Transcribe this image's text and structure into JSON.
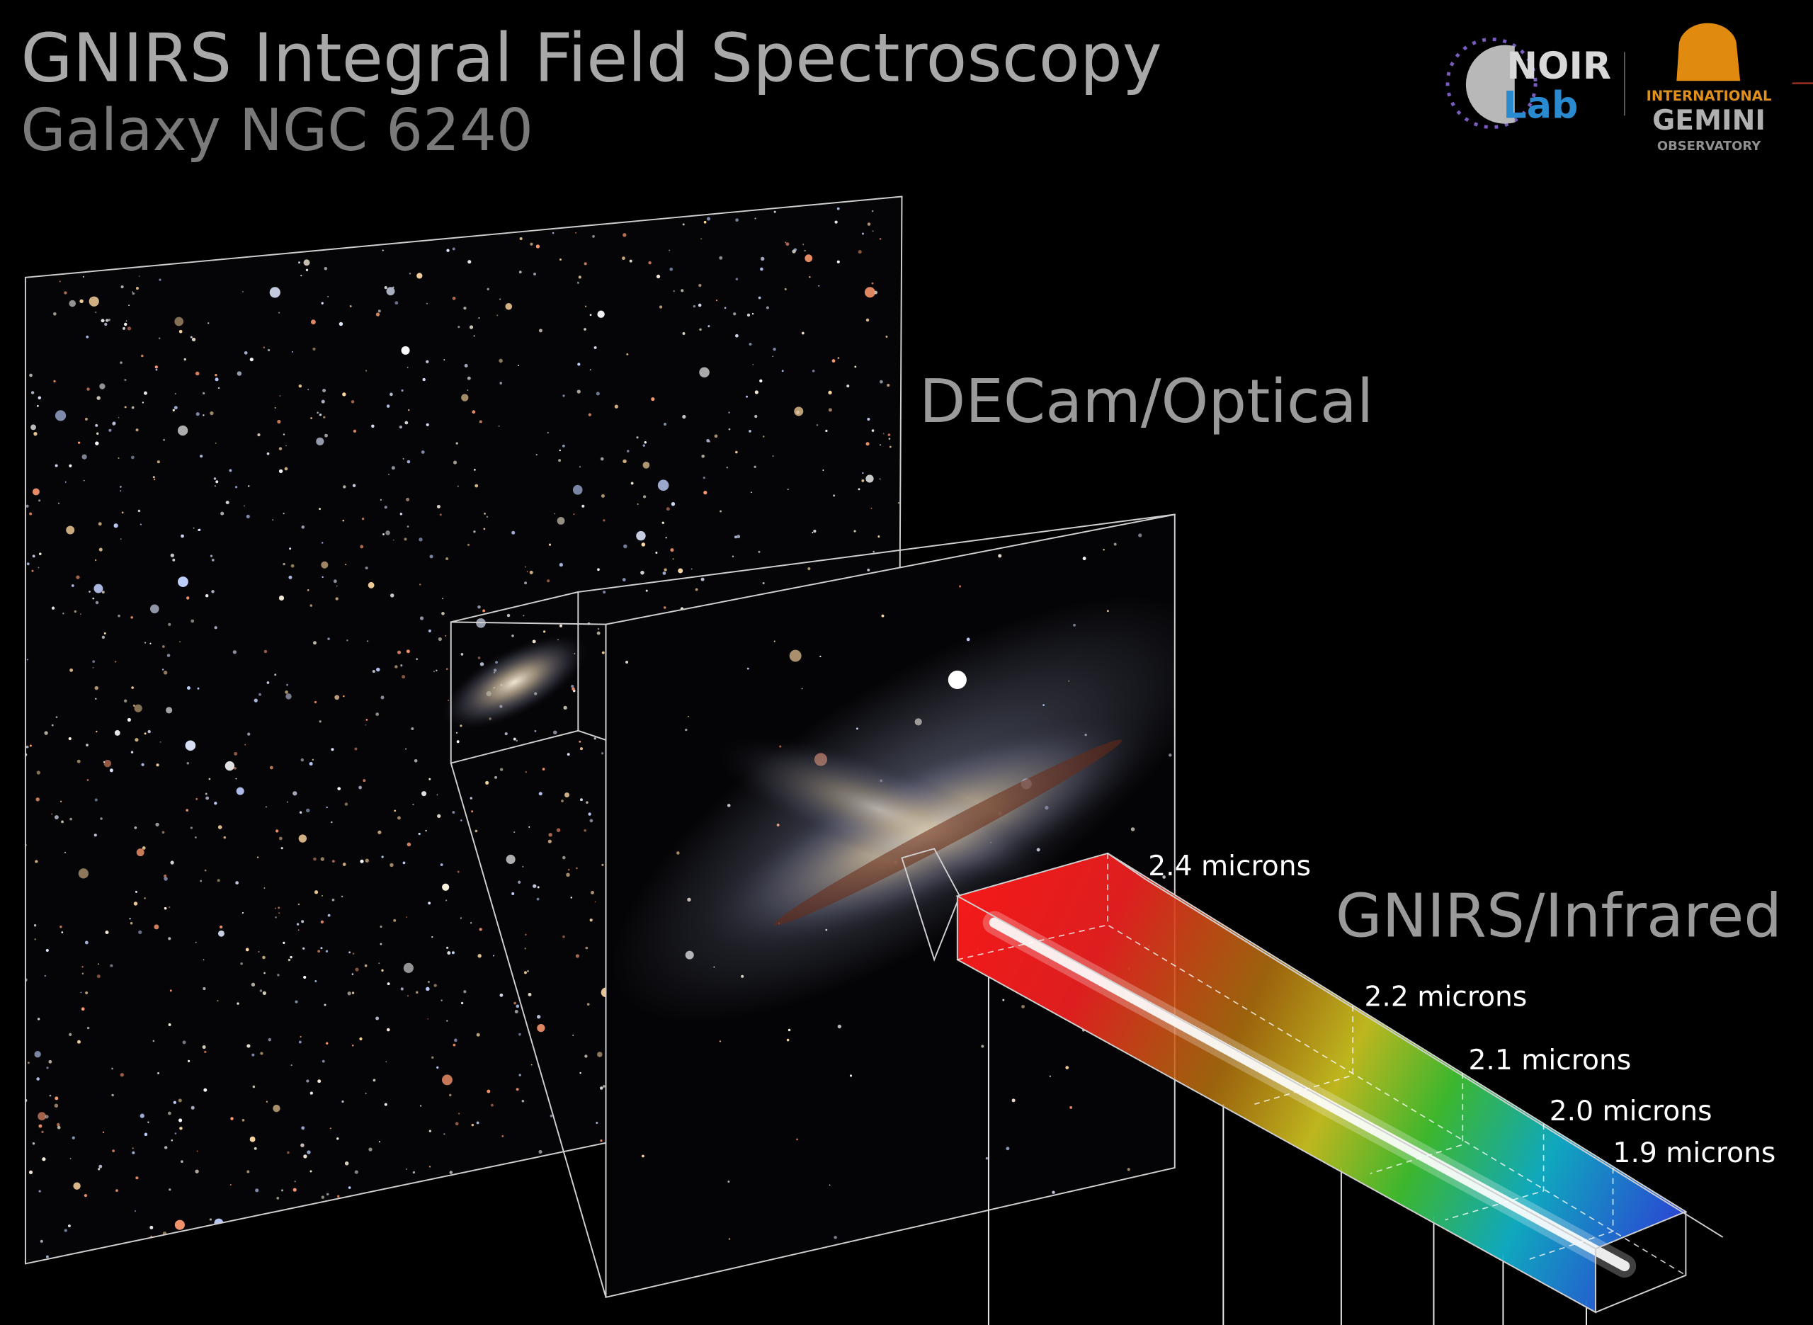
{
  "header": {
    "title": "GNIRS Integral Field Spectroscopy",
    "subtitle": "Galaxy NGC 6240"
  },
  "logos": {
    "noirlab": [
      "NOIR",
      "Lab"
    ],
    "gemini": [
      "INTERNATIONAL",
      "GEMINI",
      "OBSERVATORY"
    ]
  },
  "panels": {
    "optical": "DECam/Optical",
    "infrared": "GNIRS/Infrared"
  },
  "wavelengths": [
    "2.4 microns",
    "2.2 microns",
    "2.1 microns",
    "2.0 microns",
    "1.9 microns"
  ]
}
